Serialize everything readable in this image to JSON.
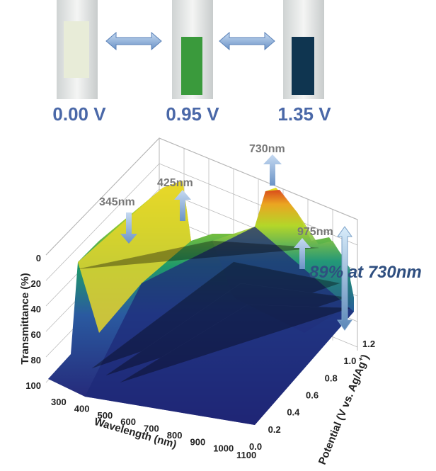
{
  "states": [
    {
      "label": "0.00 V"
    },
    {
      "label": "0.95 V"
    },
    {
      "label": "1.35 V"
    }
  ],
  "plot": {
    "z_axis": {
      "label": "Transmittance (%)",
      "ticks": [
        "0",
        "20",
        "40",
        "60",
        "80",
        "100"
      ]
    },
    "x_axis": {
      "label": "Wavelength (nm)",
      "ticks": [
        "300",
        "400",
        "500",
        "600",
        "700",
        "800",
        "900",
        "1000",
        "1100"
      ]
    },
    "y_axis": {
      "label": {
        "main": "Potential (V vs. Ag/Ag",
        "sup": "+",
        "end": ")"
      },
      "ticks": [
        "0.0",
        "0.2",
        "0.4",
        "0.6",
        "0.8",
        "1.0",
        "1.2"
      ]
    },
    "annotations": {
      "peak_345": "345nm",
      "peak_425": "425nm",
      "peak_730": "730nm",
      "peak_975": "975nm",
      "contrast": "89% at 730nm"
    }
  }
}
